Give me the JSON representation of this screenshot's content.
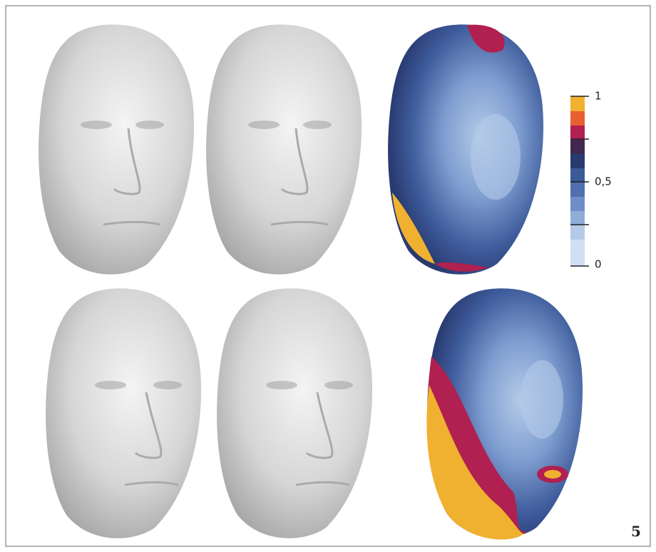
{
  "colorbar": {
    "labels": [
      "1",
      "0,5",
      "0"
    ]
  },
  "figure_number": "5"
}
